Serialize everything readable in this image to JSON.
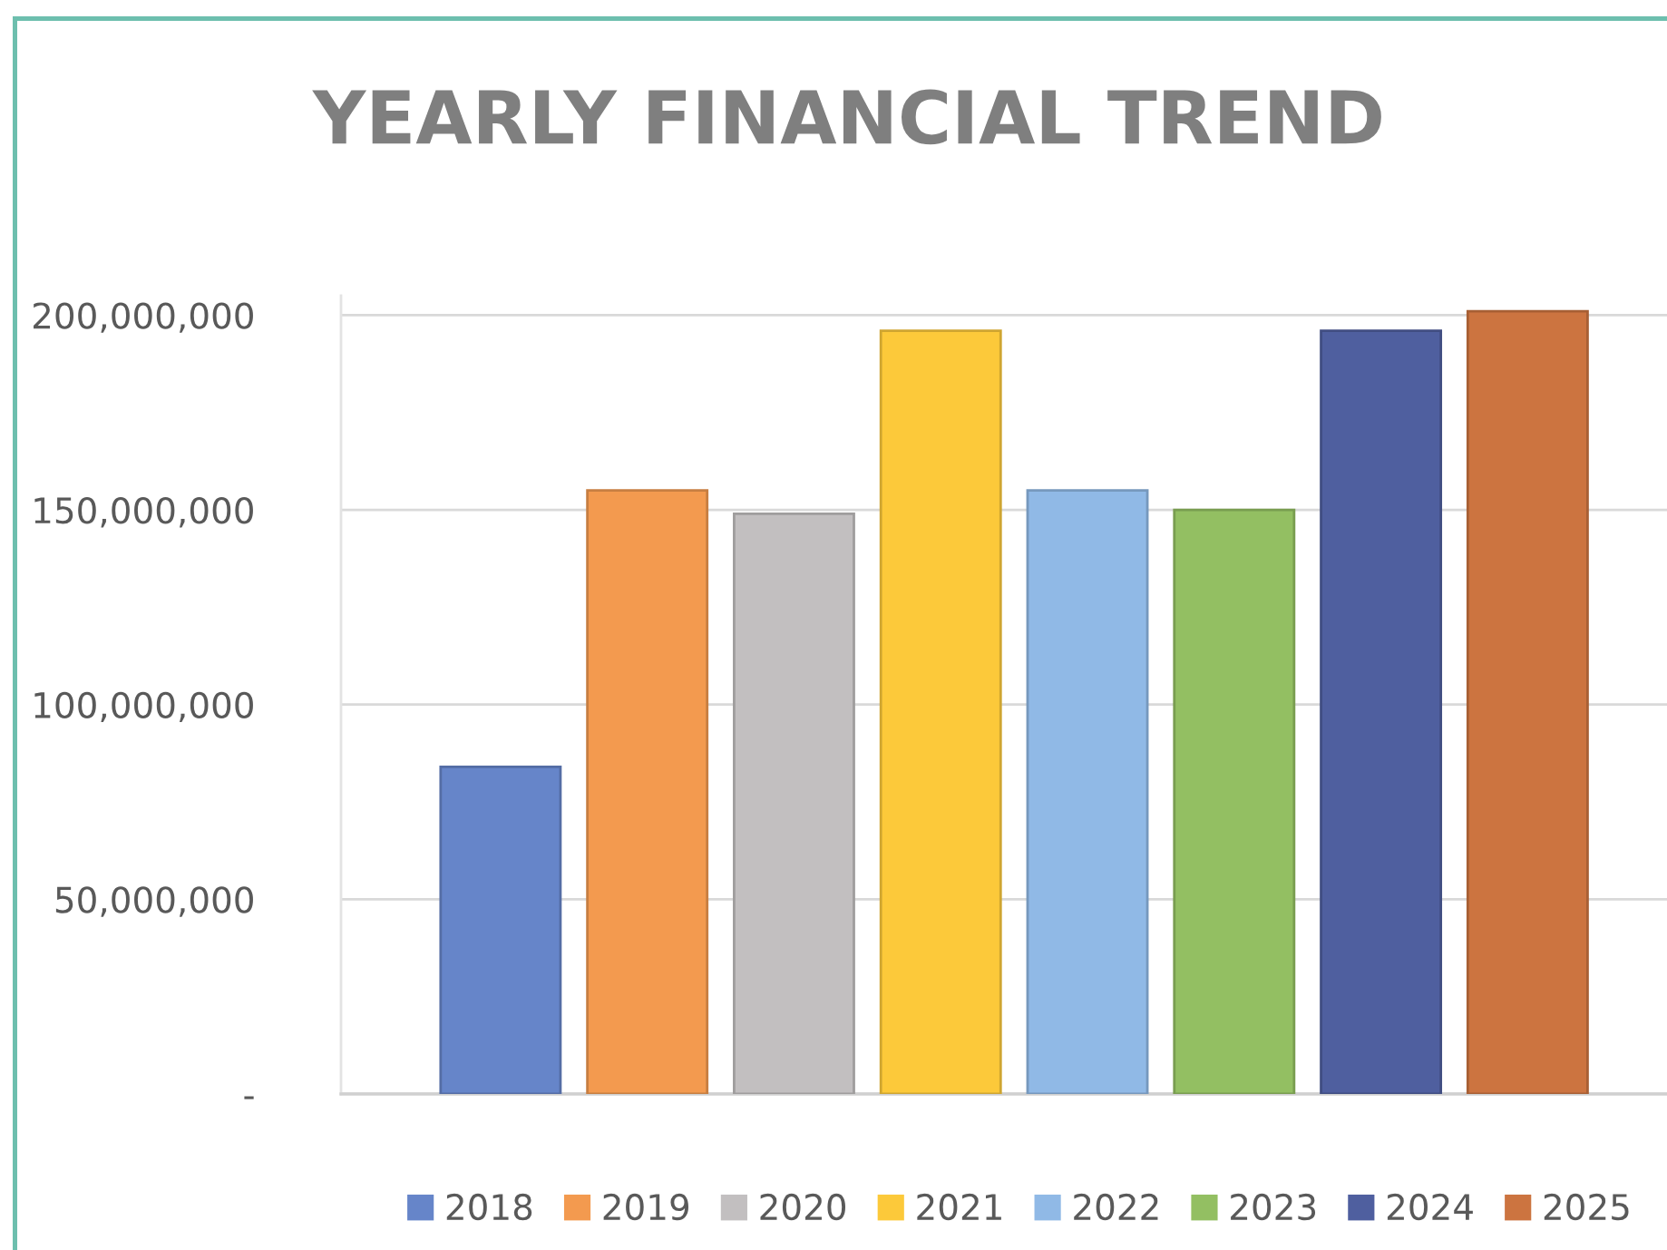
{
  "chart_data": {
    "type": "bar",
    "title": "YEARLY FINANCIAL TREND",
    "categories": [
      null
    ],
    "series": [
      {
        "name": "2018",
        "color": "#6685c9",
        "values": [
          84000000
        ]
      },
      {
        "name": "2019",
        "color": "#f39a4f",
        "values": [
          155000000
        ]
      },
      {
        "name": "2020",
        "color": "#c2bfc0",
        "values": [
          149000000
        ]
      },
      {
        "name": "2021",
        "color": "#fcc93a",
        "values": [
          196000000
        ]
      },
      {
        "name": "2022",
        "color": "#90b9e6",
        "values": [
          155000000
        ]
      },
      {
        "name": "2023",
        "color": "#93bf62",
        "values": [
          150000000
        ]
      },
      {
        "name": "2024",
        "color": "#4f5f9f",
        "values": [
          196000000
        ]
      },
      {
        "name": "2025",
        "color": "#cc7440",
        "values": [
          201000000
        ]
      }
    ],
    "ylim": [
      0,
      205000000
    ],
    "yticks": [
      {
        "value": 0,
        "label": "-"
      },
      {
        "value": 50000000,
        "label": "50,000,000"
      },
      {
        "value": 100000000,
        "label": "100,000,000"
      },
      {
        "value": 150000000,
        "label": "150,000,000"
      },
      {
        "value": 200000000,
        "label": "200,000,000"
      }
    ],
    "grid": "y",
    "legend": "bottom",
    "tick_labels": "y"
  }
}
